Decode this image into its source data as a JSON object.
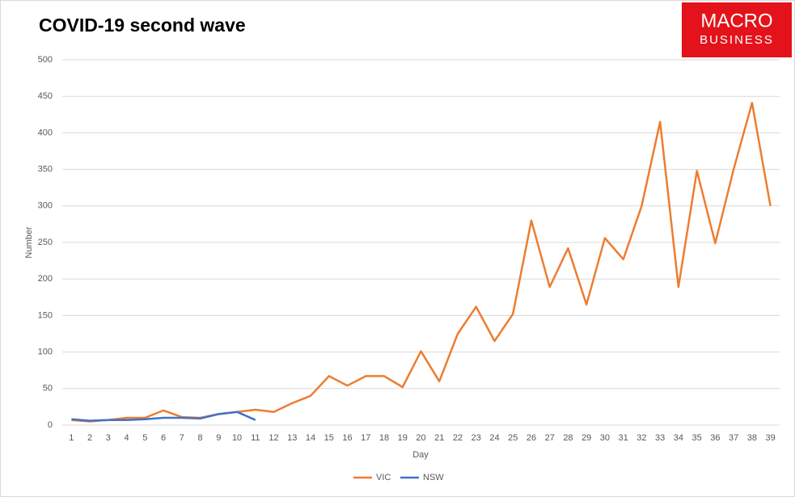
{
  "branding": {
    "line1": "MACRO",
    "line2": "BUSINESS"
  },
  "chart_data": {
    "type": "line",
    "title": "COVID-19 second wave",
    "x_label": "Day",
    "y_label": "Number",
    "categories": [
      1,
      2,
      3,
      4,
      5,
      6,
      7,
      8,
      9,
      10,
      11,
      12,
      13,
      14,
      15,
      16,
      17,
      18,
      19,
      20,
      21,
      22,
      23,
      24,
      25,
      26,
      27,
      28,
      29,
      30,
      31,
      32,
      33,
      34,
      35,
      36,
      37,
      38,
      39
    ],
    "series": [
      {
        "name": "VIC",
        "color": "#ed7d31",
        "values": [
          7,
          5,
          7,
          10,
          10,
          20,
          11,
          10,
          15,
          18,
          21,
          18,
          30,
          40,
          67,
          54,
          67,
          67,
          52,
          101,
          60,
          125,
          162,
          115,
          152,
          280,
          189,
          242,
          165,
          256,
          227,
          300,
          415,
          189,
          348,
          249,
          350,
          441,
          300
        ]
      },
      {
        "name": "NSW",
        "color": "#4472c4",
        "values": [
          8,
          6,
          7,
          7,
          8,
          10,
          10,
          9,
          15,
          18,
          7,
          null,
          null,
          null,
          null,
          null,
          null,
          null,
          null,
          null,
          null,
          null,
          null,
          null,
          null,
          null,
          null,
          null,
          null,
          null,
          null,
          null,
          null,
          null,
          null,
          null,
          null,
          null,
          null
        ]
      }
    ],
    "ylim": [
      0,
      500
    ],
    "yticks": [
      0,
      50,
      100,
      150,
      200,
      250,
      300,
      350,
      400,
      450,
      500
    ],
    "grid": true,
    "legend": "bottom"
  }
}
